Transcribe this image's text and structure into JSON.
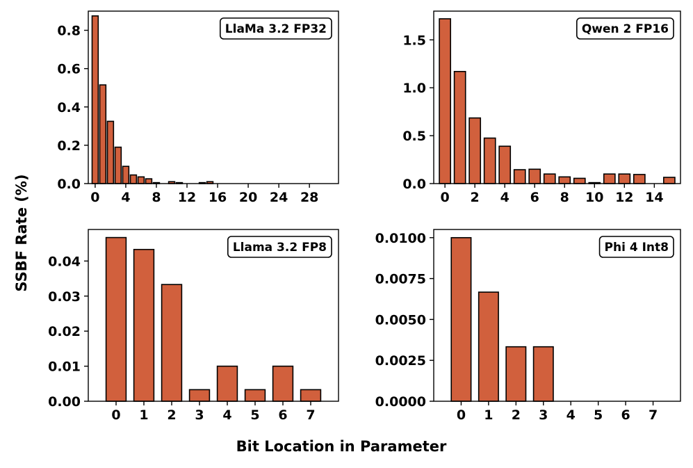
{
  "figure": {
    "ylabel": "SSBF Rate (%)",
    "xlabel": "Bit Location in Parameter"
  },
  "chart_data": [
    {
      "type": "bar",
      "legend": "LlaMa 3.2 FP32",
      "legend_position": "top-right",
      "x": [
        0,
        1,
        2,
        3,
        4,
        5,
        6,
        7,
        8,
        9,
        10,
        11,
        12,
        13,
        14,
        15,
        16,
        17,
        18,
        19,
        20,
        21,
        22,
        23,
        24,
        25,
        26,
        27,
        28,
        29,
        30,
        31
      ],
      "values": [
        0.875,
        0.515,
        0.325,
        0.19,
        0.09,
        0.045,
        0.035,
        0.025,
        0.005,
        0.0,
        0.01,
        0.005,
        0.0,
        0.0,
        0.005,
        0.01,
        0.0,
        0.0,
        0.0,
        0.0,
        0.0,
        0.0,
        0.0,
        0.0,
        0.0,
        0.0,
        0.0,
        0.0,
        0.0,
        0.0,
        0.0,
        0.0
      ],
      "xticks": [
        0,
        4,
        8,
        12,
        16,
        20,
        24,
        28
      ],
      "yticks": [
        0.0,
        0.2,
        0.4,
        0.6,
        0.8
      ],
      "ytick_labels": [
        "0.0",
        "0.2",
        "0.4",
        "0.6",
        "0.8"
      ],
      "xlim": [
        -0.9,
        31.8
      ],
      "ylim": [
        0,
        0.9
      ],
      "bar_width": 0.8
    },
    {
      "type": "bar",
      "legend": "Qwen 2 FP16",
      "legend_position": "top-right",
      "x": [
        0,
        1,
        2,
        3,
        4,
        5,
        6,
        7,
        8,
        9,
        10,
        11,
        12,
        13,
        14,
        15
      ],
      "values": [
        1.72,
        1.17,
        0.685,
        0.475,
        0.39,
        0.145,
        0.15,
        0.1,
        0.07,
        0.055,
        0.01,
        0.1,
        0.1,
        0.095,
        0.0,
        0.065
      ],
      "xticks": [
        0,
        2,
        4,
        6,
        8,
        10,
        12,
        14
      ],
      "yticks": [
        0.0,
        0.5,
        1.0,
        1.5
      ],
      "ytick_labels": [
        "0.0",
        "0.5",
        "1.0",
        "1.5"
      ],
      "xlim": [
        -0.75,
        15.75
      ],
      "ylim": [
        0,
        1.8
      ],
      "bar_width": 0.75
    },
    {
      "type": "bar",
      "legend": "Llama 3.2 FP8",
      "legend_position": "top-right",
      "x": [
        0,
        1,
        2,
        3,
        4,
        5,
        6,
        7
      ],
      "values": [
        0.0467,
        0.0433,
        0.0333,
        0.0033,
        0.01,
        0.0033,
        0.01,
        0.0033
      ],
      "xticks": [
        0,
        1,
        2,
        3,
        4,
        5,
        6,
        7
      ],
      "yticks": [
        0.0,
        0.01,
        0.02,
        0.03,
        0.04
      ],
      "ytick_labels": [
        "0.00",
        "0.01",
        "0.02",
        "0.03",
        "0.04"
      ],
      "xlim": [
        -1.0,
        8.0
      ],
      "ylim": [
        0,
        0.049
      ],
      "bar_width": 0.72
    },
    {
      "type": "bar",
      "legend": "Phi 4 Int8",
      "legend_position": "top-right",
      "x": [
        0,
        1,
        2,
        3,
        4,
        5,
        6,
        7
      ],
      "values": [
        0.01,
        0.00667,
        0.00333,
        0.00333,
        0.0,
        0.0,
        0.0,
        0.0
      ],
      "xticks": [
        0,
        1,
        2,
        3,
        4,
        5,
        6,
        7
      ],
      "yticks": [
        0.0,
        0.0025,
        0.005,
        0.0075,
        0.01
      ],
      "ytick_labels": [
        "0.0000",
        "0.0025",
        "0.0050",
        "0.0075",
        "0.0100"
      ],
      "xlim": [
        -1.0,
        8.0
      ],
      "ylim": [
        0,
        0.0105
      ],
      "bar_width": 0.72
    }
  ]
}
